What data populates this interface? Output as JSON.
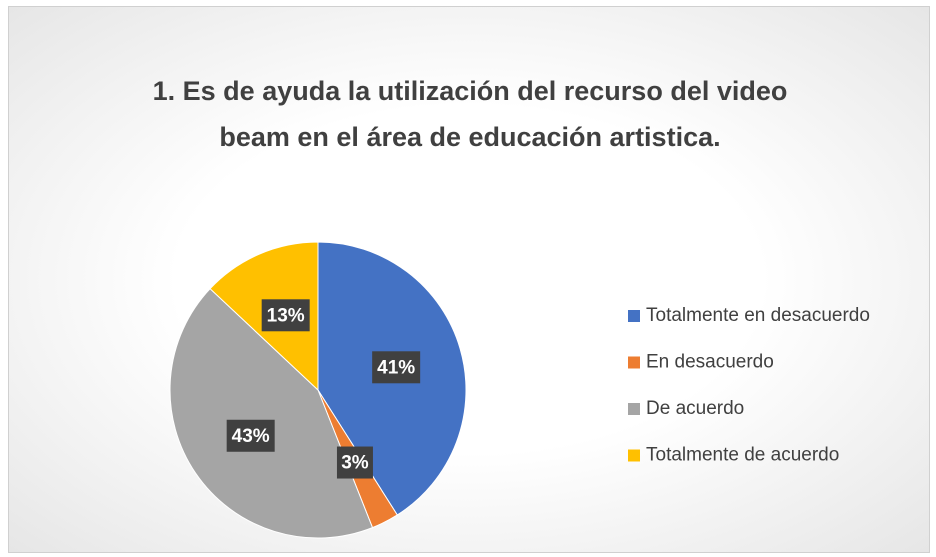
{
  "chart_data": {
    "type": "pie",
    "title": "1. Es de ayuda la utilización del recurso del video beam en el área de educación artistica.",
    "categories": [
      "Totalmente en desacuerdo",
      "En desacuerdo",
      "De acuerdo",
      "Totalmente de acuerdo"
    ],
    "values": [
      41,
      3,
      43,
      13
    ],
    "value_labels": [
      "41%",
      "3%",
      "43%",
      "13%"
    ],
    "colors": [
      "#4472c4",
      "#ed7d31",
      "#a5a5a5",
      "#ffc000"
    ],
    "legend": "right"
  }
}
